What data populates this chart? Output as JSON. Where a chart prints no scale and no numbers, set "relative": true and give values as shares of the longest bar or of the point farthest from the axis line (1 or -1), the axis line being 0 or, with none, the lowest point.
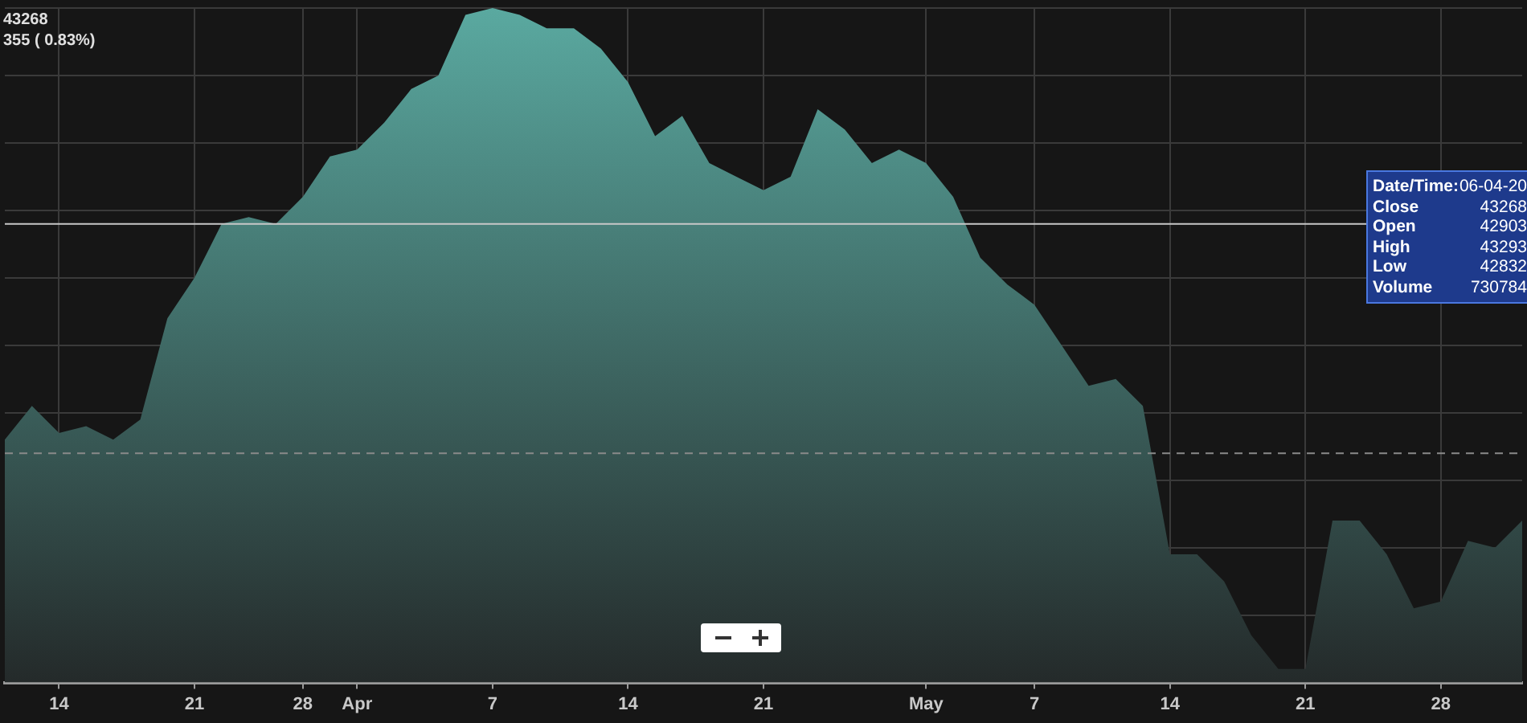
{
  "chart_data": {
    "type": "area",
    "relative": true,
    "categories": [
      null,
      null,
      "14",
      null,
      null,
      null,
      null,
      "21",
      null,
      null,
      null,
      "28",
      null,
      "Apr",
      null,
      null,
      null,
      null,
      "7",
      null,
      null,
      null,
      null,
      "14",
      null,
      null,
      null,
      null,
      "21",
      null,
      null,
      null,
      null,
      null,
      "May",
      null,
      null,
      null,
      "7",
      null,
      null,
      null,
      null,
      "14",
      null,
      null,
      null,
      null,
      "21",
      null,
      null,
      null,
      null,
      "28",
      null,
      null,
      null
    ],
    "series": [
      {
        "color": "#5aa9a0",
        "values": [
          0.36,
          0.41,
          0.37,
          0.38,
          0.36,
          0.39,
          0.54,
          0.6,
          0.68,
          0.69,
          0.68,
          0.72,
          0.78,
          0.79,
          0.83,
          0.88,
          0.9,
          0.99,
          1,
          0.99,
          0.97,
          0.97,
          0.94,
          0.89,
          0.81,
          0.84,
          0.77,
          0.75,
          0.73,
          0.75,
          0.85,
          0.82,
          0.77,
          0.79,
          0.77,
          0.72,
          0.63,
          0.59,
          0.56,
          0.5,
          0.44,
          0.45,
          0.41,
          0.19,
          0.19,
          0.15,
          0.07,
          0.02,
          0.02,
          0.24,
          0.24,
          0.19,
          0.11,
          0.12,
          0.21,
          0.2,
          0.24
        ]
      }
    ],
    "ref_lines": [
      {
        "axis": "y",
        "value": 0.68,
        "color": "#c8c8c8"
      },
      {
        "axis": "y",
        "value": 0.34,
        "color": "#8a8a8a",
        "line_style": "dashed"
      }
    ],
    "annotations": [
      "43268",
      "355 ( 0.83%)",
      "Date/Time:",
      "06-04-20",
      "Close",
      "43268",
      "Open",
      "42903",
      "High",
      "43293",
      "Low",
      "42832",
      "Volume",
      "730784"
    ],
    "grid": true,
    "legend": false
  }
}
